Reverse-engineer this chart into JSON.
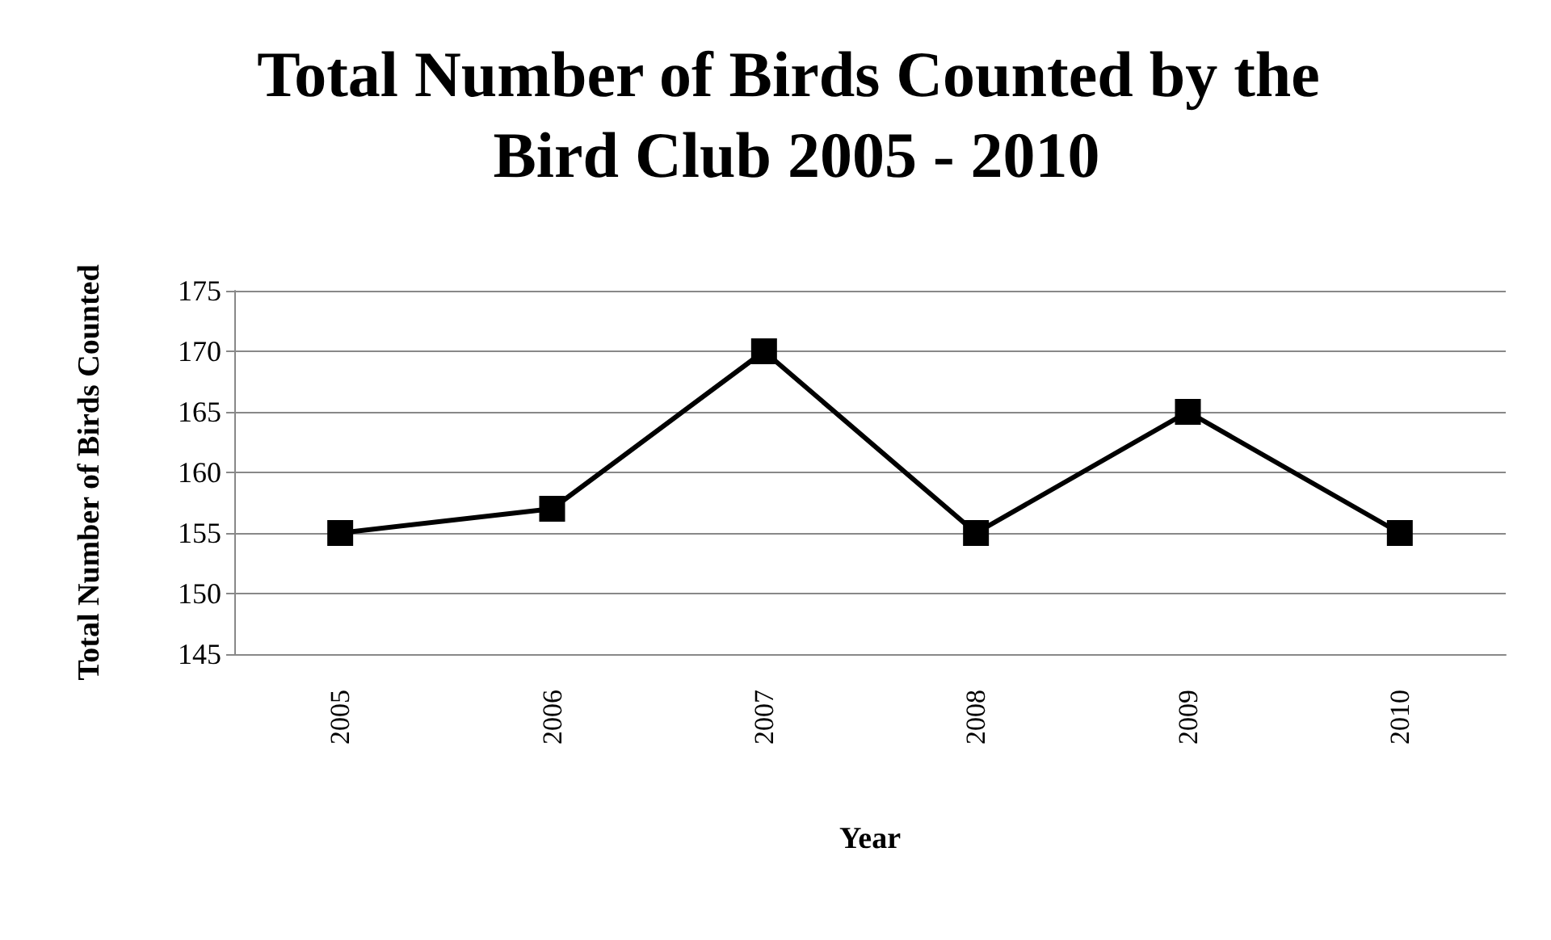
{
  "chart_data": {
    "type": "line",
    "title": "Total Number of Birds Counted by the Bird Club 2005 - 2010",
    "xlabel": "Year",
    "ylabel": "Total Number of Birds Counted",
    "categories": [
      "2005",
      "2006",
      "2007",
      "2008",
      "2009",
      "2010"
    ],
    "series": [
      {
        "color": "#000000",
        "values": [
          155,
          157,
          170,
          155,
          165,
          155
        ]
      }
    ],
    "ylim": [
      145,
      175
    ],
    "yticks": [
      145,
      150,
      155,
      160,
      165,
      170,
      175
    ],
    "grid": "y",
    "marker": "square",
    "line_style": "solid"
  }
}
